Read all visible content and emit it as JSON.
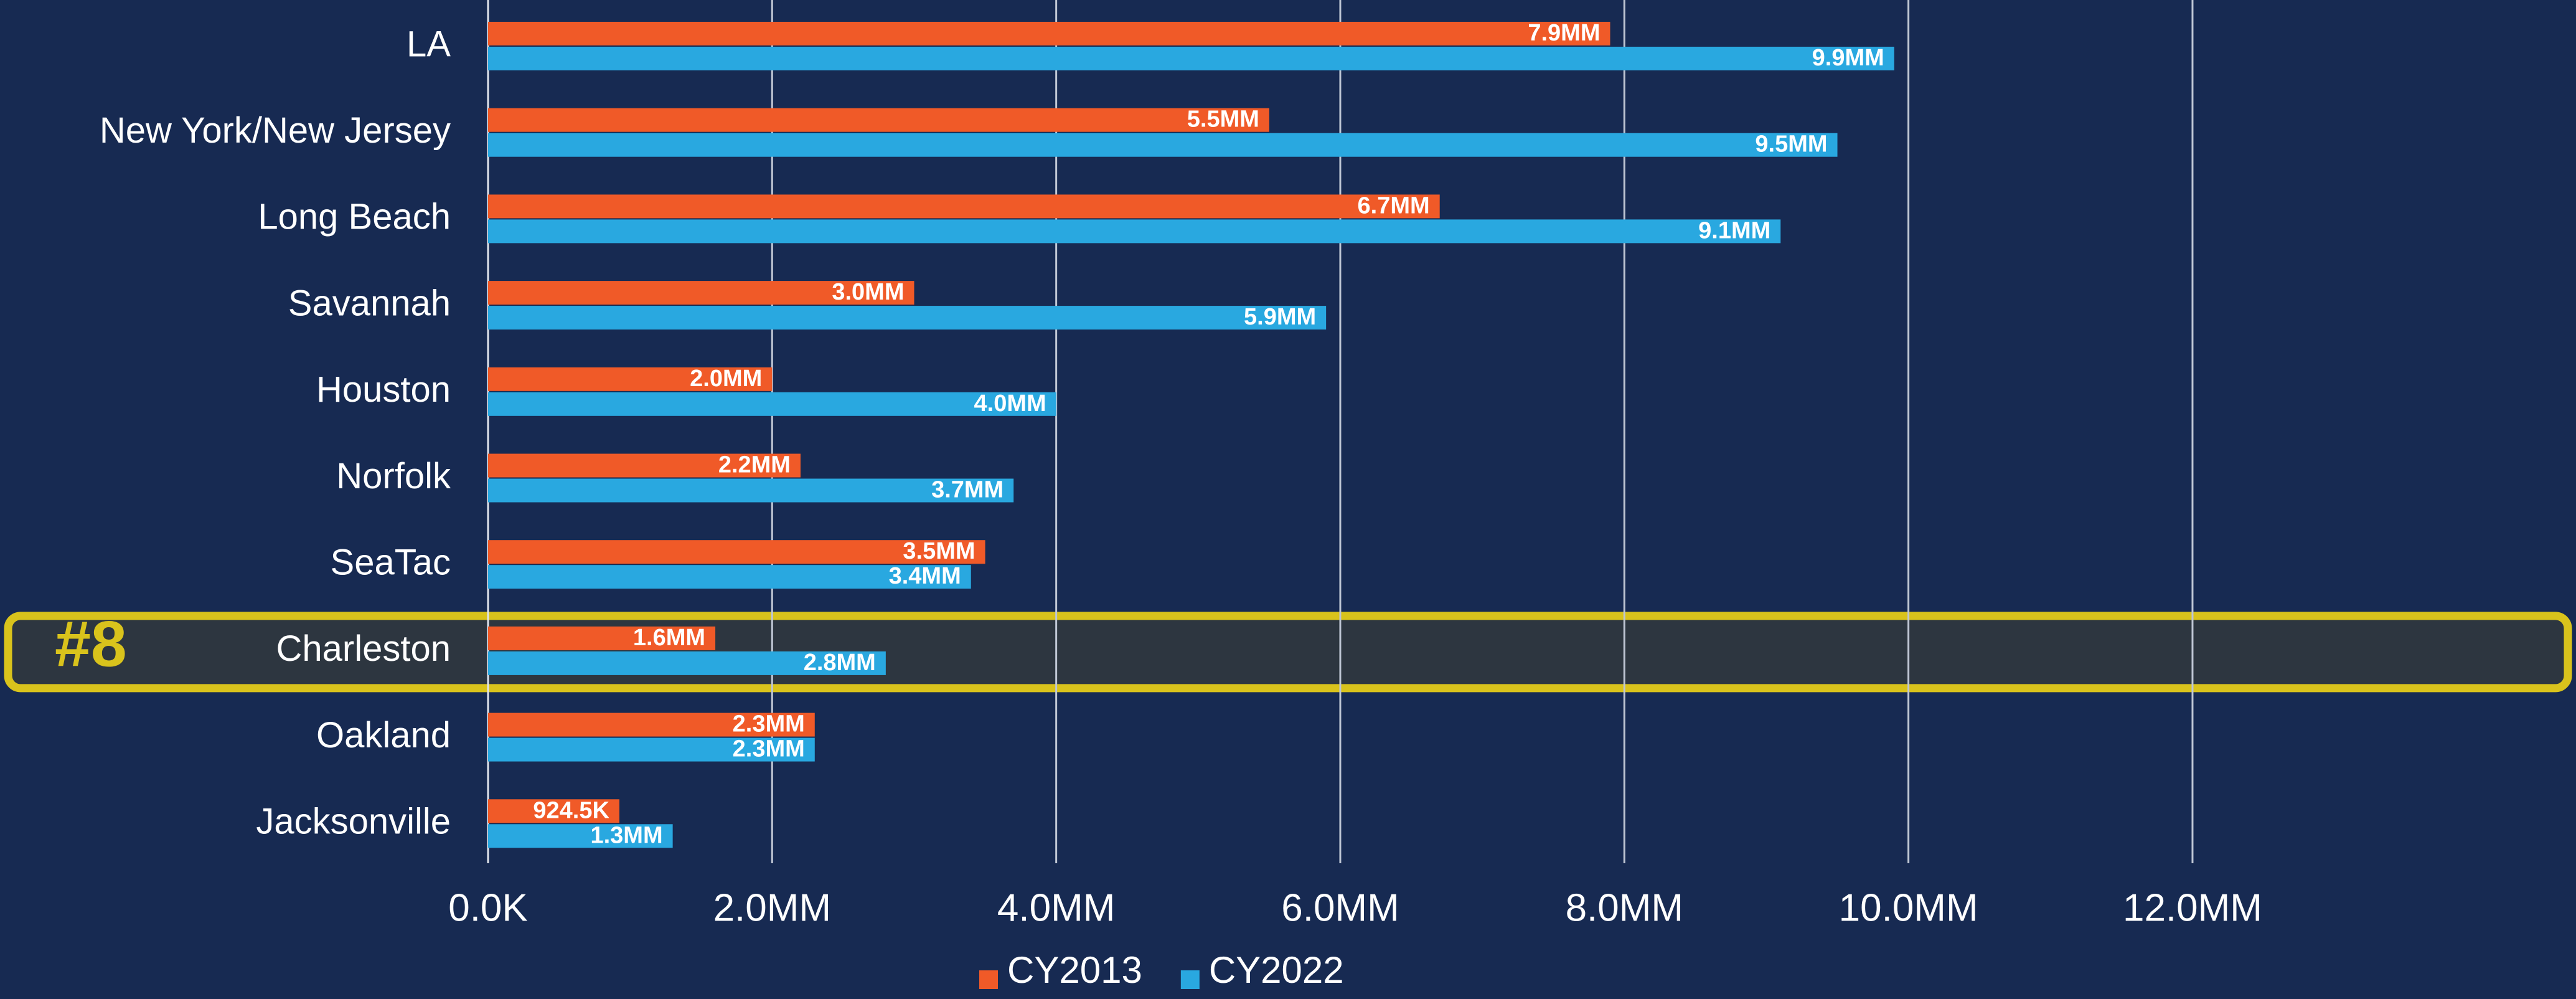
{
  "chart_data": {
    "type": "bar",
    "orientation": "horizontal",
    "categories": [
      "LA",
      "New York/New Jersey",
      "Long Beach",
      "Savannah",
      "Houston",
      "Norfolk",
      "SeaTac",
      "Charleston",
      "Oakland",
      "Jacksonville"
    ],
    "series": [
      {
        "name": "CY2013",
        "color": "#f05a28",
        "values": [
          7900000,
          5500000,
          6700000,
          3000000,
          2000000,
          2200000,
          3500000,
          1600000,
          2300000,
          924500
        ],
        "value_labels": [
          "7.9MM",
          "5.5MM",
          "6.7MM",
          "3.0MM",
          "2.0MM",
          "2.2MM",
          "3.5MM",
          "1.6MM",
          "2.3MM",
          "924.5K"
        ]
      },
      {
        "name": "CY2022",
        "color": "#29a8e0",
        "values": [
          9900000,
          9500000,
          9100000,
          5900000,
          4000000,
          3700000,
          3400000,
          2800000,
          2300000,
          1300000
        ],
        "value_labels": [
          "9.9MM",
          "9.5MM",
          "9.1MM",
          "5.9MM",
          "4.0MM",
          "3.7MM",
          "3.4MM",
          "2.8MM",
          "2.3MM",
          "1.3MM"
        ]
      }
    ],
    "xlim": [
      0,
      14700000
    ],
    "xticks": [
      {
        "value": 0,
        "label": "0.0K"
      },
      {
        "value": 2000000,
        "label": "2.0MM"
      },
      {
        "value": 4000000,
        "label": "4.0MM"
      },
      {
        "value": 6000000,
        "label": "6.0MM"
      },
      {
        "value": 8000000,
        "label": "8.0MM"
      },
      {
        "value": 10000000,
        "label": "10.0MM"
      },
      {
        "value": 12000000,
        "label": "12.0MM"
      }
    ],
    "grid": true,
    "legend": "bottom",
    "annotations": [
      {
        "text": "#8",
        "category": "Charleston",
        "color": "#d9c31c"
      }
    ]
  }
}
